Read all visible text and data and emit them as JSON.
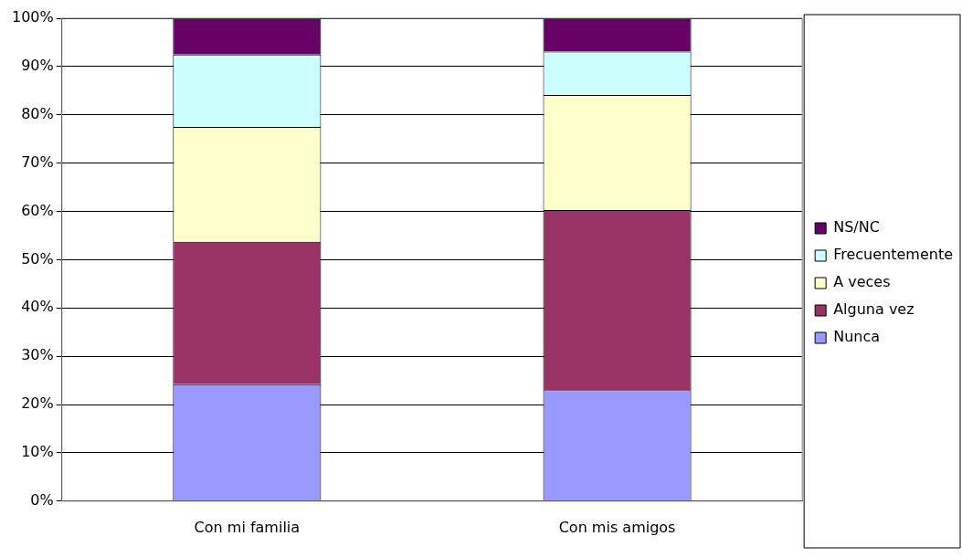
{
  "chart_data": {
    "type": "bar",
    "stacked": true,
    "categories": [
      "Con mi familia",
      "Con mis amigos"
    ],
    "series": [
      {
        "name": "Nunca",
        "color": "#9999ff",
        "values": [
          24.2,
          23.0
        ]
      },
      {
        "name": "Alguna vez",
        "color": "#993366",
        "values": [
          29.5,
          37.3
        ]
      },
      {
        "name": "A veces",
        "color": "#ffffcc",
        "values": [
          23.8,
          23.8
        ]
      },
      {
        "name": "Frecuentemente",
        "color": "#ccffff",
        "values": [
          15.0,
          9.0
        ]
      },
      {
        "name": "NS/NC",
        "color": "#660066",
        "values": [
          7.5,
          6.9
        ]
      }
    ],
    "ylim": [
      0,
      100
    ],
    "yticks": [
      {
        "value": 0,
        "label": "0%"
      },
      {
        "value": 10,
        "label": "10%"
      },
      {
        "value": 20,
        "label": "20%"
      },
      {
        "value": 30,
        "label": "30%"
      },
      {
        "value": 40,
        "label": "40%"
      },
      {
        "value": 50,
        "label": "50%"
      },
      {
        "value": 60,
        "label": "60%"
      },
      {
        "value": 70,
        "label": "70%"
      },
      {
        "value": 80,
        "label": "80%"
      },
      {
        "value": 90,
        "label": "90%"
      },
      {
        "value": 100,
        "label": "100%"
      }
    ],
    "grid": "y",
    "legend": "right"
  }
}
